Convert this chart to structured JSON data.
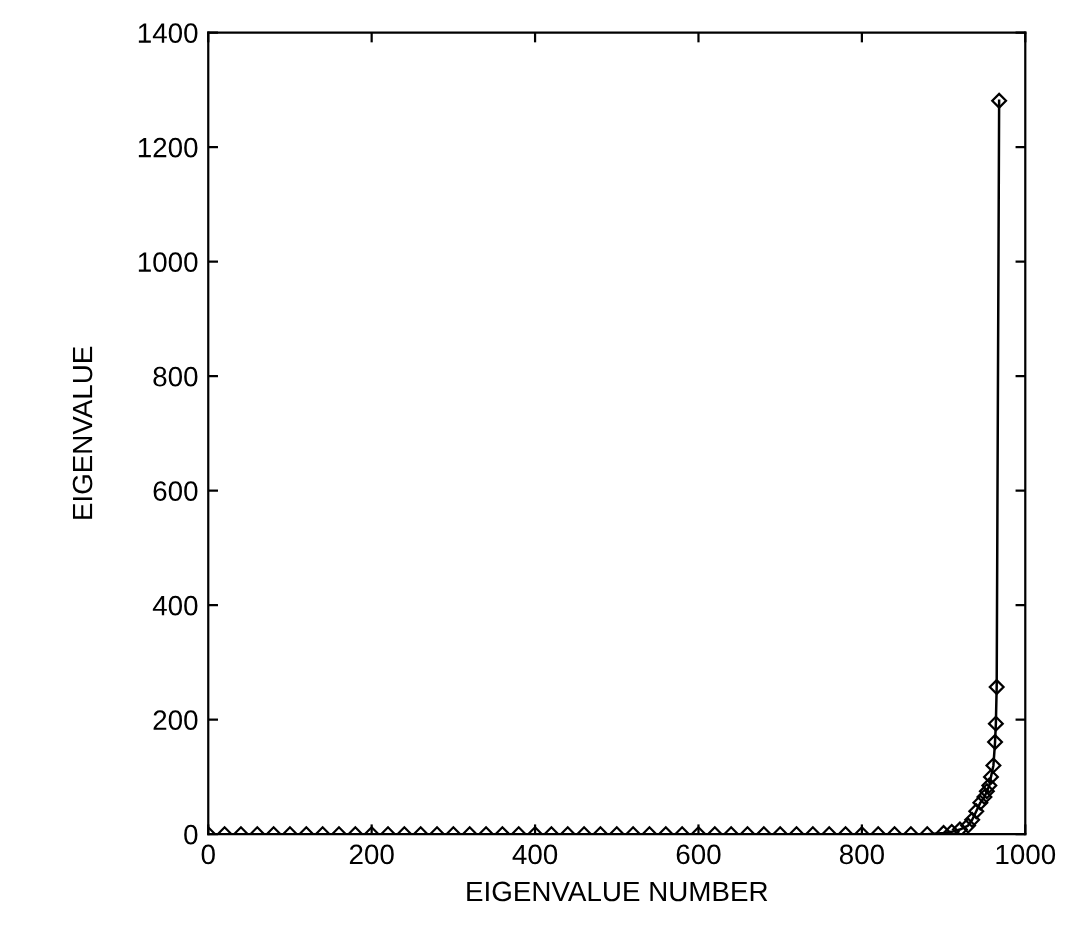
{
  "chart_data": {
    "type": "line",
    "xlabel": "EIGENVALUE NUMBER",
    "ylabel": "EIGENVALUE",
    "series": [
      {
        "color": "#000000",
        "x": [
          0,
          20,
          40,
          60,
          80,
          100,
          120,
          140,
          160,
          180,
          200,
          220,
          240,
          260,
          280,
          300,
          320,
          340,
          360,
          380,
          400,
          420,
          440,
          460,
          480,
          500,
          520,
          540,
          560,
          580,
          600,
          620,
          640,
          660,
          680,
          700,
          720,
          740,
          760,
          780,
          800,
          820,
          840,
          860,
          880,
          900,
          910,
          920,
          930,
          935,
          940,
          945,
          950,
          953,
          956,
          958,
          961,
          963,
          964,
          965,
          968
        ],
        "values": [
          0,
          0,
          0,
          0,
          0,
          0,
          0,
          0,
          0,
          0,
          0,
          0,
          0,
          0,
          0,
          0,
          0,
          0,
          0,
          0,
          0,
          0,
          0,
          0,
          0,
          0,
          0,
          0,
          0,
          0,
          0,
          0,
          0,
          0,
          0,
          0,
          0,
          0,
          0,
          0,
          0,
          0,
          0,
          0,
          0,
          2,
          4,
          8,
          15,
          25,
          40,
          55,
          65,
          75,
          85,
          100,
          120,
          161,
          193,
          257,
          1281
        ]
      }
    ],
    "xlim": [
      0,
      1000
    ],
    "ylim": [
      0,
      1400
    ],
    "xticks": [
      0,
      200,
      400,
      600,
      800,
      1000
    ],
    "yticks": [
      0,
      200,
      400,
      600,
      800,
      1000,
      1200,
      1400
    ],
    "marker": "diamond",
    "line_style": "solid",
    "grid": false,
    "legend": false
  }
}
